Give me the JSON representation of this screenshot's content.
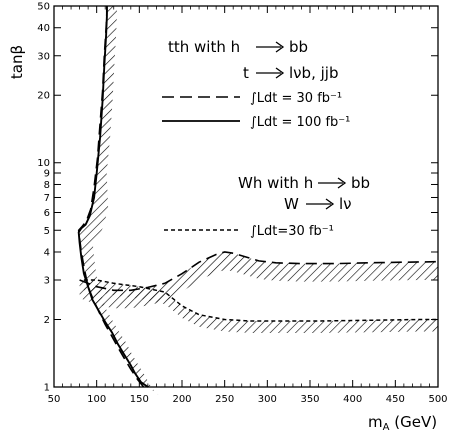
{
  "chart_data": {
    "type": "line",
    "xlabel": "m",
    "xlabel_sub": "A",
    "xlabel_unit": " (GeV)",
    "ylabel": "tanβ",
    "x_scale": "linear",
    "y_scale": "log",
    "xlim": [
      50,
      500
    ],
    "ylim": [
      1,
      50
    ],
    "x_ticks": [
      50,
      100,
      150,
      200,
      250,
      300,
      350,
      400,
      450,
      500
    ],
    "x_tick_labels": [
      "50",
      "100",
      "150",
      "200",
      "250",
      "300",
      "350",
      "400",
      "450",
      "500"
    ],
    "y_ticks": [
      1,
      2,
      3,
      4,
      5,
      6,
      7,
      8,
      9,
      10,
      20,
      30,
      40,
      50
    ],
    "y_tick_labels": [
      "1",
      "2",
      "3",
      "4",
      "5",
      "6",
      "7",
      "8",
      "9",
      "10",
      "20",
      "30",
      "40",
      "50"
    ],
    "grid": false,
    "legend": [
      {
        "title_main": "tth with h",
        "title_decay": "bb",
        "subtitle_main": "t",
        "subtitle_decay": "lνb, jjb",
        "entries": [
          {
            "style": "long-dash",
            "label": "∫Ldt = 30 fb⁻¹"
          },
          {
            "style": "solid",
            "label": "∫Ldt = 100 fb⁻¹"
          }
        ]
      },
      {
        "title_main": "Wh with h",
        "title_decay": "bb",
        "subtitle_main": "W",
        "subtitle_decay": "lν",
        "entries": [
          {
            "style": "short-dash",
            "label": "∫Ldt=30 fb⁻¹"
          }
        ]
      }
    ],
    "series": [
      {
        "style": "solid",
        "x": [
          160,
          152,
          145,
          140,
          132,
          125,
          118,
          110,
          102,
          95,
          90,
          85,
          82,
          80,
          79,
          82,
          87,
          92,
          97,
          100,
          104,
          107,
          109,
          111,
          112,
          112
        ],
        "y": [
          1.0,
          1.05,
          1.15,
          1.25,
          1.4,
          1.55,
          1.75,
          1.95,
          2.2,
          2.45,
          2.8,
          3.2,
          3.8,
          4.4,
          4.9,
          5.1,
          5.3,
          5.8,
          7.0,
          9.0,
          13.0,
          19.0,
          27.0,
          37.0,
          45.0,
          50.0
        ]
      },
      {
        "style": "long-dash",
        "x": [
          155,
          148,
          140,
          132,
          125,
          118,
          110,
          103,
          96,
          90,
          86,
          82,
          80,
          79,
          83,
          88,
          93,
          97,
          101,
          104,
          107,
          109,
          111,
          112,
          112
        ],
        "y": [
          1.0,
          1.08,
          1.2,
          1.35,
          1.5,
          1.68,
          1.9,
          2.15,
          2.45,
          2.8,
          3.3,
          4.0,
          4.6,
          5.0,
          5.2,
          5.5,
          6.2,
          7.8,
          10.5,
          15.0,
          21.0,
          30.0,
          40.0,
          47.0,
          50.0
        ]
      },
      {
        "style": "long-dash",
        "x": [
          80,
          100,
          120,
          140,
          160,
          180,
          200,
          220,
          240,
          250,
          260,
          275,
          290,
          310,
          340,
          380,
          420,
          460,
          500
        ],
        "y": [
          3.0,
          2.8,
          2.7,
          2.7,
          2.78,
          2.9,
          3.2,
          3.6,
          3.9,
          4.0,
          3.95,
          3.8,
          3.65,
          3.58,
          3.55,
          3.55,
          3.58,
          3.6,
          3.62
        ]
      },
      {
        "style": "short-dash",
        "x": [
          85,
          100,
          120,
          150,
          180,
          200,
          220,
          250,
          280,
          320,
          360,
          400,
          440,
          480,
          500
        ],
        "y": [
          3.0,
          3.0,
          2.9,
          2.8,
          2.65,
          2.3,
          2.1,
          2.0,
          1.97,
          1.97,
          1.97,
          1.98,
          1.99,
          2.0,
          2.0
        ]
      }
    ]
  }
}
